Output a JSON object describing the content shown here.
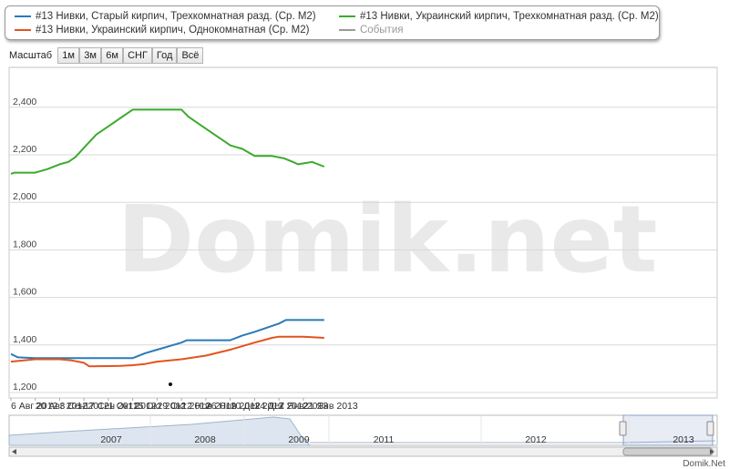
{
  "legend": {
    "items": [
      {
        "label": "#13 Нивки, Старый кирпич, Трехкомнатная разд. (Ср. М2)",
        "color": "#2a7ab8"
      },
      {
        "label": "#13 Нивки, Украинский кирпич, Трехкомнатная разд. (Ср. М2)",
        "color": "#3aab2c"
      },
      {
        "label": "#13 Нивки, Украинский кирпич, Однокомнатная (Ср. М2)",
        "color": "#e2541e"
      },
      {
        "label": "События",
        "color": "#9a9a9a"
      }
    ]
  },
  "toolbar": {
    "label": "Масштаб",
    "buttons": [
      "1м",
      "3м",
      "6м",
      "СНГ",
      "Год",
      "Всё"
    ]
  },
  "watermark": "Domik.net",
  "credit": "Domik.Net",
  "chart_data": {
    "type": "line",
    "y_ticks": [
      "1,200",
      "1,400",
      "1,600",
      "1,800",
      "2,000",
      "2,200",
      "2,400"
    ],
    "ylim": [
      1200,
      2550
    ],
    "x_ticks": [
      "6 Авг 2012",
      "20 Авг 2012",
      "3 Сен 2012",
      "17 Сен 2012",
      "1 Окт 2012",
      "15 Окт 2012",
      "29 Окт 2012",
      "12 Ноя 2012",
      "26 Ноя 2012",
      "10 Дек 2012",
      "24 Дек 2012",
      "7 Янв 2013",
      "21 Янв 2013"
    ],
    "x_range": [
      "2012-08-06",
      "2013-02-02"
    ],
    "series": [
      {
        "name": "#13 Нивки, Украинский кирпич, Трехкомнатная разд. (Ср. М2)",
        "color": "#3aab2c",
        "points": [
          [
            "2012-08-06",
            2120
          ],
          [
            "2012-08-08",
            2125
          ],
          [
            "2012-08-20",
            2125
          ],
          [
            "2012-08-27",
            2140
          ],
          [
            "2012-09-03",
            2160
          ],
          [
            "2012-09-08",
            2170
          ],
          [
            "2012-09-12",
            2190
          ],
          [
            "2012-09-17",
            2230
          ],
          [
            "2012-09-24",
            2285
          ],
          [
            "2012-10-01",
            2320
          ],
          [
            "2012-10-08",
            2355
          ],
          [
            "2012-10-15",
            2390
          ],
          [
            "2012-11-12",
            2390
          ],
          [
            "2012-11-16",
            2360
          ],
          [
            "2012-11-26",
            2310
          ],
          [
            "2012-12-03",
            2275
          ],
          [
            "2012-12-10",
            2240
          ],
          [
            "2012-12-17",
            2225
          ],
          [
            "2012-12-24",
            2195
          ],
          [
            "2013-01-03",
            2195
          ],
          [
            "2013-01-10",
            2185
          ],
          [
            "2013-01-15",
            2170
          ],
          [
            "2013-01-18",
            2160
          ],
          [
            "2013-01-22",
            2165
          ],
          [
            "2013-01-26",
            2170
          ],
          [
            "2013-02-02",
            2150
          ]
        ]
      },
      {
        "name": "#13 Нивки, Старый кирпич, Трехкомнатная разд. (Ср. М2)",
        "color": "#2a7ab8",
        "points": [
          [
            "2012-08-06",
            1362
          ],
          [
            "2012-08-10",
            1348
          ],
          [
            "2012-08-20",
            1345
          ],
          [
            "2012-10-15",
            1345
          ],
          [
            "2012-10-22",
            1365
          ],
          [
            "2012-10-29",
            1380
          ],
          [
            "2012-11-12",
            1410
          ],
          [
            "2012-11-15",
            1420
          ],
          [
            "2012-12-08",
            1420
          ],
          [
            "2012-12-10",
            1420
          ],
          [
            "2012-12-17",
            1440
          ],
          [
            "2012-12-24",
            1455
          ],
          [
            "2013-01-01",
            1475
          ],
          [
            "2013-01-07",
            1490
          ],
          [
            "2013-01-11",
            1505
          ],
          [
            "2013-02-02",
            1505
          ]
        ]
      },
      {
        "name": "#13 Нивки, Украинский кирпич, Однокомнатная (Ср. М2)",
        "color": "#e2541e",
        "points": [
          [
            "2012-08-06",
            1330
          ],
          [
            "2012-08-20",
            1340
          ],
          [
            "2012-09-03",
            1340
          ],
          [
            "2012-09-10",
            1335
          ],
          [
            "2012-09-17",
            1325
          ],
          [
            "2012-09-20",
            1310
          ],
          [
            "2012-10-08",
            1312
          ],
          [
            "2012-10-15",
            1315
          ],
          [
            "2012-10-22",
            1320
          ],
          [
            "2012-10-29",
            1330
          ],
          [
            "2012-11-12",
            1340
          ],
          [
            "2012-11-26",
            1355
          ],
          [
            "2012-12-10",
            1380
          ],
          [
            "2012-12-24",
            1410
          ],
          [
            "2013-01-03",
            1430
          ],
          [
            "2013-01-07",
            1435
          ],
          [
            "2013-01-21",
            1435
          ],
          [
            "2013-02-02",
            1430
          ]
        ]
      }
    ],
    "navigator": {
      "years": [
        "2007",
        "2008",
        "2009",
        "2011",
        "2012",
        "2013"
      ]
    }
  }
}
